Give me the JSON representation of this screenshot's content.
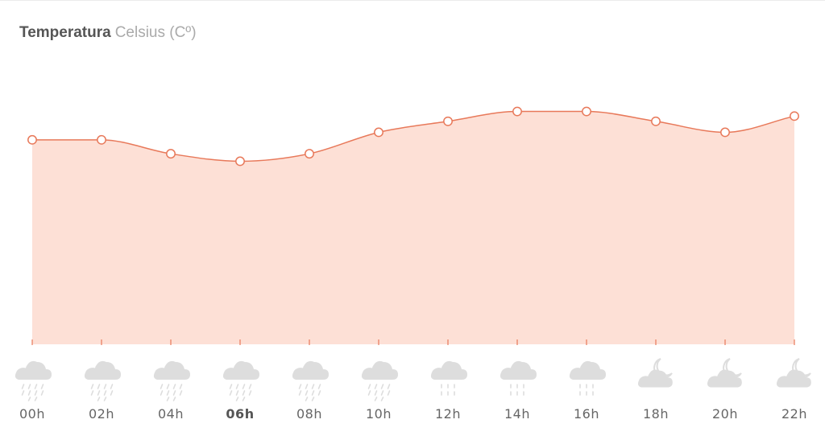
{
  "header": {
    "title": "Temperatura",
    "unit": "Celsius (Cº)"
  },
  "colors": {
    "line": "#e8795a",
    "area": "#fde0d6",
    "point_fill": "#ffffff",
    "icon": "#dddddd",
    "label": "#666666"
  },
  "chart_data": {
    "type": "area",
    "title": "Temperatura Celsius (Cº)",
    "xlabel": "",
    "ylabel": "",
    "ylim": [
      0,
      40
    ],
    "grid": false,
    "legend": "none",
    "categories": [
      "00h",
      "02h",
      "04h",
      "06h",
      "08h",
      "10h",
      "12h",
      "14h",
      "16h",
      "18h",
      "20h",
      "22h"
    ],
    "series": [
      {
        "values": [
          35.3,
          35.3,
          32.9,
          31.6,
          32.9,
          36.6,
          38.5,
          40.2,
          40.2,
          38.5,
          36.6,
          39.4
        ]
      }
    ],
    "current_hour": "06h",
    "conditions": [
      "cloud-rain-icon",
      "cloud-rain-icon",
      "cloud-rain-icon",
      "cloud-rain-icon",
      "cloud-rain-icon",
      "cloud-rain-icon",
      "cloud-drizzle-icon",
      "cloud-drizzle-icon",
      "cloud-drizzle-icon",
      "moon-cloud-icon",
      "moon-cloud-icon",
      "moon-cloud-icon"
    ]
  }
}
